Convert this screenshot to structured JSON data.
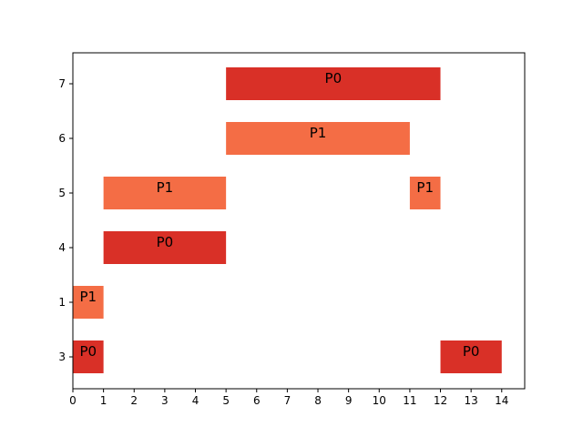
{
  "chart_data": {
    "type": "bar",
    "title": "",
    "xlabel": "",
    "ylabel": "",
    "xlim": [
      0,
      14.75
    ],
    "x_ticks": [
      0,
      1,
      2,
      3,
      4,
      5,
      6,
      7,
      8,
      9,
      10,
      11,
      12,
      13,
      14
    ],
    "rows": [
      "3",
      "1",
      "4",
      "5",
      "6",
      "7"
    ],
    "colors": {
      "P0": "#d93027",
      "P1": "#f46d45"
    },
    "bars": [
      {
        "row": "3",
        "start": 0,
        "end": 1,
        "label": "P0"
      },
      {
        "row": "3",
        "start": 12,
        "end": 14,
        "label": "P0"
      },
      {
        "row": "1",
        "start": 0,
        "end": 1,
        "label": "P1"
      },
      {
        "row": "4",
        "start": 1,
        "end": 5,
        "label": "P0"
      },
      {
        "row": "5",
        "start": 1,
        "end": 5,
        "label": "P1"
      },
      {
        "row": "5",
        "start": 11,
        "end": 12,
        "label": "P1"
      },
      {
        "row": "6",
        "start": 5,
        "end": 11,
        "label": "P1"
      },
      {
        "row": "7",
        "start": 5,
        "end": 12,
        "label": "P0"
      }
    ]
  }
}
